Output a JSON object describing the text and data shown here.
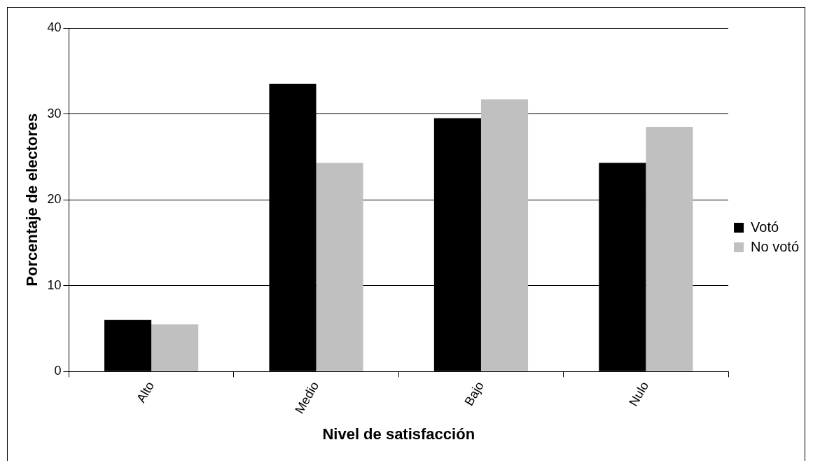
{
  "chart_data": {
    "type": "bar",
    "xlabel": "Nivel de satisfacción",
    "ylabel": "Porcentaje de electores",
    "categories": [
      "Alto",
      "Medio",
      "Bajo",
      "Nulo"
    ],
    "series": [
      {
        "name": "Votó",
        "color": "#000000",
        "values": [
          6.0,
          33.5,
          29.5,
          24.3
        ]
      },
      {
        "name": "No votó",
        "color": "#c0c0c0",
        "values": [
          5.5,
          24.3,
          31.7,
          28.5
        ]
      }
    ],
    "ylim": [
      0,
      40
    ],
    "yticks": [
      0,
      10,
      20,
      30,
      40
    ],
    "grid": "y",
    "legend": "right"
  }
}
